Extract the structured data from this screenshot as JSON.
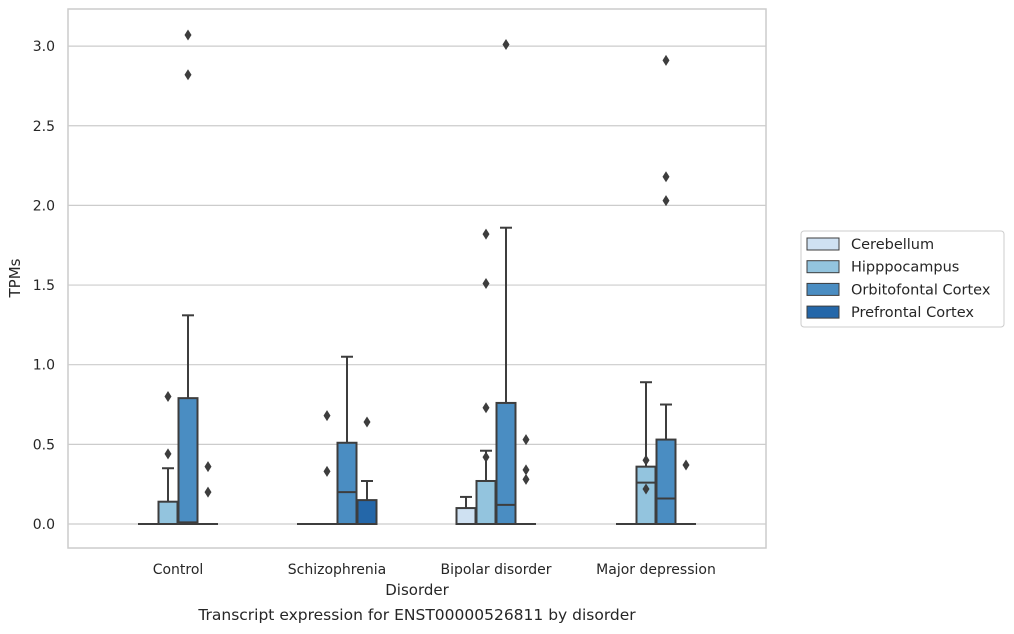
{
  "caption": "Transcript expression for ENST00000526811 by disorder",
  "chart_data": {
    "type": "box",
    "xlabel": "Disorder",
    "ylabel": "TPMs",
    "ylim": [
      -0.15,
      3.23
    ],
    "yticks": [
      0.0,
      0.5,
      1.0,
      1.5,
      2.0,
      2.5,
      3.0
    ],
    "ytick_labels": [
      "0.0",
      "0.5",
      "1.0",
      "1.5",
      "2.0",
      "2.5",
      "3.0"
    ],
    "grid": "horizontal",
    "legend_position": "right",
    "categories": [
      "Control",
      "Schizophrenia",
      "Bipolar disorder",
      "Major depression"
    ],
    "series": [
      {
        "name": "Cerebellum",
        "color": "#cfe1f2",
        "boxes": [
          {
            "q1": 0,
            "median": 0,
            "q3": 0,
            "whislo": 0,
            "whishi": 0,
            "fliers": []
          },
          {
            "q1": 0,
            "median": 0,
            "q3": 0,
            "whislo": 0,
            "whishi": 0,
            "fliers": []
          },
          {
            "q1": 0,
            "median": 0,
            "q3": 0.1,
            "whislo": 0,
            "whishi": 0.17,
            "fliers": []
          },
          {
            "q1": 0,
            "median": 0,
            "q3": 0,
            "whislo": 0,
            "whishi": 0,
            "fliers": []
          }
        ]
      },
      {
        "name": "Hipppocampus",
        "color": "#93c4de",
        "boxes": [
          {
            "q1": 0,
            "median": 0,
            "q3": 0.14,
            "whislo": 0,
            "whishi": 0.35,
            "fliers": [
              0.8,
              0.44
            ]
          },
          {
            "q1": 0,
            "median": 0,
            "q3": 0,
            "whislo": 0,
            "whishi": 0,
            "fliers": [
              0.68,
              0.33
            ]
          },
          {
            "q1": 0,
            "median": 0,
            "q3": 0.27,
            "whislo": 0,
            "whishi": 0.46,
            "fliers": [
              1.82,
              1.51,
              0.73,
              0.42
            ]
          },
          {
            "q1": 0,
            "median": 0.26,
            "q3": 0.36,
            "whislo": 0,
            "whishi": 0.89,
            "fliers": [
              0.4,
              0.22
            ]
          }
        ]
      },
      {
        "name": "Orbitofontal Cortex",
        "color": "#4a8dc2",
        "boxes": [
          {
            "q1": 0,
            "median": 0.01,
            "q3": 0.79,
            "whislo": 0,
            "whishi": 1.31,
            "fliers": [
              3.07,
              2.82
            ]
          },
          {
            "q1": 0,
            "median": 0.2,
            "q3": 0.51,
            "whislo": 0,
            "whishi": 1.05,
            "fliers": []
          },
          {
            "q1": 0,
            "median": 0.12,
            "q3": 0.76,
            "whislo": 0,
            "whishi": 1.86,
            "fliers": [
              3.01
            ]
          },
          {
            "q1": 0,
            "median": 0.16,
            "q3": 0.53,
            "whislo": 0,
            "whishi": 0.75,
            "fliers": [
              2.91,
              2.18,
              2.03
            ]
          }
        ]
      },
      {
        "name": "Prefrontal Cortex",
        "color": "#2467a9",
        "boxes": [
          {
            "q1": 0,
            "median": 0,
            "q3": 0,
            "whislo": 0,
            "whishi": 0,
            "fliers": [
              0.36,
              0.2
            ]
          },
          {
            "q1": 0,
            "median": 0,
            "q3": 0.15,
            "whislo": 0,
            "whishi": 0.27,
            "fliers": [
              0.64
            ]
          },
          {
            "q1": 0,
            "median": 0,
            "q3": 0,
            "whislo": 0,
            "whishi": 0,
            "fliers": [
              0.53,
              0.34,
              0.28
            ]
          },
          {
            "q1": 0,
            "median": 0,
            "q3": 0,
            "whislo": 0,
            "whishi": 0,
            "fliers": [
              0.37
            ]
          }
        ]
      }
    ]
  }
}
